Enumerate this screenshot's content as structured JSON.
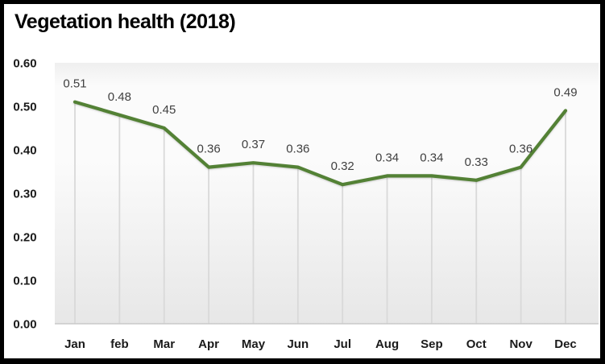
{
  "chart_data": {
    "type": "line",
    "title": "Vegetation health (2018)",
    "categories": [
      "Jan",
      "feb",
      "Mar",
      "Apr",
      "May",
      "Jun",
      "Jul",
      "Aug",
      "Sep",
      "Oct",
      "Nov",
      "Dec"
    ],
    "values": [
      0.51,
      0.48,
      0.45,
      0.36,
      0.37,
      0.36,
      0.32,
      0.34,
      0.34,
      0.33,
      0.36,
      0.49
    ],
    "data_labels": [
      "0.51",
      "0.48",
      "0.45",
      "0.36",
      "0.37",
      "0.36",
      "0.32",
      "0.34",
      "0.34",
      "0.33",
      "0.36",
      "0.49"
    ],
    "xlabel": "",
    "ylabel": "",
    "ylim": [
      0.0,
      0.6
    ],
    "ytick_interval": 0.1,
    "ytick_labels": [
      "0.60",
      "0.50",
      "0.40",
      "0.30",
      "0.20",
      "0.10",
      "0.00"
    ],
    "legend": "none",
    "gridlines": "vertical-drop-lines-only",
    "colors": {
      "line": "#538135",
      "drop_line": "#d9d9d9",
      "axis_line": "#c9c9c9",
      "title_text": "#000000",
      "axis_text": "#1a1a1a",
      "data_label_text": "#404040",
      "plot_gradient_top": "#efefef",
      "plot_gradient_upper": "#fbfbfb",
      "plot_gradient_bottom": "#e7e7e7",
      "frame_border": "#000000",
      "background": "#ffffff"
    }
  }
}
